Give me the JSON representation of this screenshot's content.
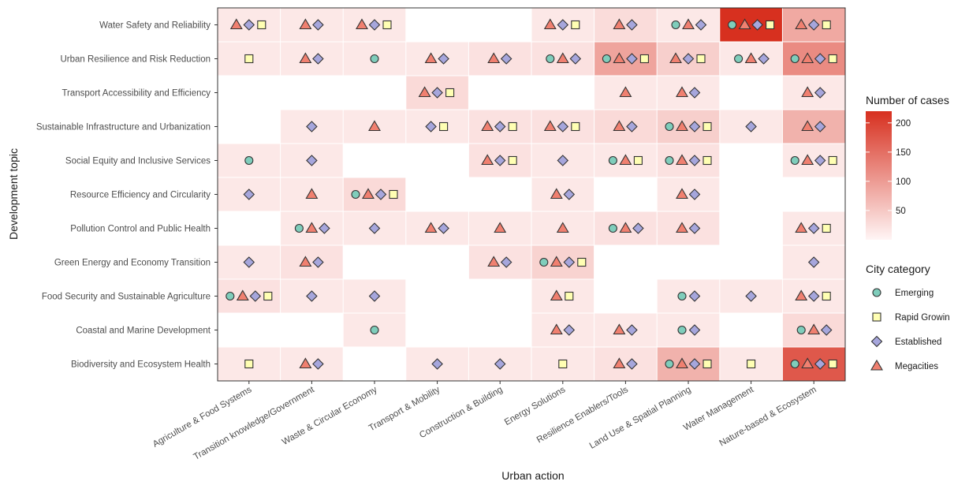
{
  "chart_data": {
    "type": "heatmap",
    "xlabel": "Urban action",
    "ylabel": "Development topic",
    "x_categories": [
      "Agriculture & Food Systems",
      "Transition knowledge/Government",
      "Waste & Circular Economy",
      "Transport & Mobility",
      "Construction & Building",
      "Energy Solutions",
      "Resilience Enablers/Tools",
      "Land Use & Spatial Planning",
      "Water Management",
      "Nature-based & Ecosystem"
    ],
    "y_categories": [
      "Water Safety and Reliability",
      "Urban Resilience and Risk Reduction",
      "Transport Accessibility and Efficiency",
      "Sustainable Infrastructure and Urbanization",
      "Social Equity and Inclusive Services",
      "Resource Efficiency and Circularity",
      "Pollution Control and Public Health",
      "Green Energy and Economy Transition",
      "Food Security and Sustainable Agriculture",
      "Coastal and Marine Development",
      "Biodiversity and Ecosystem Health"
    ],
    "fill_legend": {
      "title": "Number of cases",
      "ticks": [
        50,
        100,
        150,
        200
      ],
      "range": [
        0,
        220
      ],
      "low_color": "#fff5f5",
      "high_color": "#d7301f"
    },
    "shape_legend": {
      "title": "City category",
      "items": [
        {
          "key": "E",
          "label": "Emerging",
          "shape": "circle",
          "color": "#7fcdbb"
        },
        {
          "key": "R",
          "label": "Rapid Growin",
          "shape": "square",
          "color": "#ffffb3"
        },
        {
          "key": "S",
          "label": "Established",
          "shape": "diamond",
          "color": "#a6a6dc"
        },
        {
          "key": "M",
          "label": "Megacities",
          "shape": "triangle",
          "color": "#f08070"
        }
      ]
    },
    "cells": [
      [
        {
          "v": 14,
          "c": "MSR"
        },
        {
          "v": 14,
          "c": "MS"
        },
        {
          "v": 14,
          "c": "MSR"
        },
        null,
        null,
        {
          "v": 14,
          "c": "MSR"
        },
        {
          "v": 28,
          "c": "MS"
        },
        {
          "v": 14,
          "c": "EMS"
        },
        {
          "v": 220,
          "c": "EMSR"
        },
        {
          "v": 85,
          "c": "MSR"
        }
      ],
      [
        {
          "v": 14,
          "c": "R"
        },
        {
          "v": 14,
          "c": "MS"
        },
        {
          "v": 14,
          "c": "E"
        },
        {
          "v": 14,
          "c": "MS"
        },
        {
          "v": 22,
          "c": "MS"
        },
        {
          "v": 22,
          "c": "EMS"
        },
        {
          "v": 90,
          "c": "EMSR"
        },
        {
          "v": 42,
          "c": "MSR"
        },
        {
          "v": 14,
          "c": "EMS"
        },
        {
          "v": 118,
          "c": "EMSR"
        }
      ],
      [
        null,
        null,
        null,
        {
          "v": 30,
          "c": "MSR"
        },
        null,
        null,
        {
          "v": 14,
          "c": "M"
        },
        {
          "v": 14,
          "c": "MS"
        },
        null,
        {
          "v": 14,
          "c": "MS"
        }
      ],
      [
        null,
        {
          "v": 14,
          "c": "S"
        },
        {
          "v": 14,
          "c": "M"
        },
        {
          "v": 14,
          "c": "SR"
        },
        {
          "v": 22,
          "c": "MSR"
        },
        {
          "v": 22,
          "c": "MSR"
        },
        {
          "v": 30,
          "c": "MS"
        },
        {
          "v": 42,
          "c": "EMSR"
        },
        {
          "v": 14,
          "c": "S"
        },
        {
          "v": 75,
          "c": "MS"
        }
      ],
      [
        {
          "v": 14,
          "c": "E"
        },
        {
          "v": 14,
          "c": "S"
        },
        null,
        null,
        {
          "v": 22,
          "c": "MSR"
        },
        {
          "v": 14,
          "c": "S"
        },
        {
          "v": 14,
          "c": "EMR"
        },
        {
          "v": 22,
          "c": "EMSR"
        },
        null,
        {
          "v": 14,
          "c": "EMSR"
        }
      ],
      [
        {
          "v": 14,
          "c": "S"
        },
        {
          "v": 14,
          "c": "M"
        },
        {
          "v": 30,
          "c": "EMSR"
        },
        null,
        null,
        {
          "v": 14,
          "c": "MS"
        },
        null,
        {
          "v": 14,
          "c": "MS"
        },
        null,
        null
      ],
      [
        null,
        {
          "v": 14,
          "c": "EMS"
        },
        {
          "v": 14,
          "c": "S"
        },
        {
          "v": 14,
          "c": "MS"
        },
        {
          "v": 14,
          "c": "M"
        },
        {
          "v": 14,
          "c": "M"
        },
        {
          "v": 22,
          "c": "EMS"
        },
        {
          "v": 22,
          "c": "MS"
        },
        null,
        {
          "v": 14,
          "c": "MSR"
        }
      ],
      [
        {
          "v": 14,
          "c": "S"
        },
        {
          "v": 22,
          "c": "MS"
        },
        null,
        null,
        {
          "v": 22,
          "c": "MS"
        },
        {
          "v": 38,
          "c": "EMSR"
        },
        null,
        null,
        null,
        {
          "v": 14,
          "c": "S"
        }
      ],
      [
        {
          "v": 22,
          "c": "EMSR"
        },
        {
          "v": 14,
          "c": "S"
        },
        {
          "v": 14,
          "c": "S"
        },
        null,
        null,
        {
          "v": 14,
          "c": "MR"
        },
        null,
        {
          "v": 14,
          "c": "ES"
        },
        {
          "v": 14,
          "c": "S"
        },
        {
          "v": 14,
          "c": "MSR"
        }
      ],
      [
        null,
        null,
        {
          "v": 14,
          "c": "E"
        },
        null,
        null,
        {
          "v": 14,
          "c": "MS"
        },
        {
          "v": 14,
          "c": "MS"
        },
        {
          "v": 14,
          "c": "ES"
        },
        null,
        {
          "v": 30,
          "c": "EMS"
        }
      ],
      [
        {
          "v": 14,
          "c": "R"
        },
        {
          "v": 14,
          "c": "MS"
        },
        null,
        {
          "v": 14,
          "c": "S"
        },
        {
          "v": 14,
          "c": "S"
        },
        {
          "v": 14,
          "c": "R"
        },
        {
          "v": 22,
          "c": "MS"
        },
        {
          "v": 75,
          "c": "EMSR"
        },
        {
          "v": 14,
          "c": "R"
        },
        {
          "v": 175,
          "c": "EMSR"
        }
      ]
    ]
  }
}
